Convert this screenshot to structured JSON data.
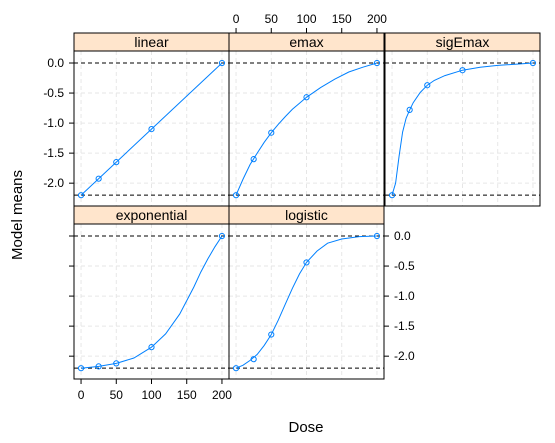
{
  "chart_data": {
    "type": "line",
    "layout": "lattice 3x2",
    "xlabel": "Dose",
    "ylabel": "Model means",
    "xlim": [
      -10,
      210
    ],
    "ylim": [
      -2.38,
      0.2
    ],
    "x_ticks": [
      0,
      50,
      100,
      150,
      200
    ],
    "y_ticks": [
      0.0,
      -0.5,
      -1.0,
      -1.5,
      -2.0
    ],
    "x_tick_labels": [
      "0",
      "50",
      "100",
      "150",
      "200"
    ],
    "y_tick_labels": [
      "0.0",
      "-0.5",
      "-1.0",
      "-1.5",
      "-2.0"
    ],
    "reference_lines": [
      0,
      -2.2
    ],
    "grid": true,
    "colors": {
      "line": "#0080ff",
      "points": "#0080ff",
      "strip": "#ffe5cc",
      "reference": "#000000",
      "grid": "#e6e6e6"
    },
    "panels": [
      {
        "title": "linear",
        "dose": [
          0,
          25,
          50,
          100,
          200
        ],
        "means": [
          -2.2,
          -1.925,
          -1.65,
          -1.1,
          0.0
        ],
        "curve": {
          "x": [
            0,
            200
          ],
          "y": [
            -2.2,
            0.0
          ]
        }
      },
      {
        "title": "emax",
        "dose": [
          0,
          25,
          50,
          100,
          200
        ],
        "means": [
          -2.2,
          -1.6,
          -1.16,
          -0.57,
          0.0
        ],
        "curve": {
          "x": [
            0,
            10,
            20,
            30,
            40,
            50,
            60,
            70,
            80,
            90,
            100,
            120,
            140,
            160,
            180,
            200
          ],
          "y": [
            -2.2,
            -1.93,
            -1.69,
            -1.5,
            -1.32,
            -1.16,
            -1.02,
            -0.89,
            -0.77,
            -0.67,
            -0.57,
            -0.41,
            -0.27,
            -0.15,
            -0.07,
            0.0
          ]
        }
      },
      {
        "title": "sigEmax",
        "dose": [
          0,
          25,
          50,
          100,
          200
        ],
        "means": [
          -2.2,
          -0.78,
          -0.37,
          -0.12,
          0.0
        ],
        "curve": {
          "x": [
            0,
            5,
            10,
            15,
            20,
            25,
            30,
            40,
            50,
            60,
            75,
            100,
            125,
            150,
            175,
            200
          ],
          "y": [
            -2.2,
            -2.0,
            -1.55,
            -1.15,
            -0.92,
            -0.78,
            -0.66,
            -0.49,
            -0.37,
            -0.29,
            -0.21,
            -0.12,
            -0.07,
            -0.04,
            -0.02,
            0.0
          ]
        }
      },
      {
        "title": "exponential",
        "dose": [
          0,
          25,
          50,
          100,
          200
        ],
        "means": [
          -2.2,
          -2.17,
          -2.12,
          -1.85,
          0.0
        ],
        "curve": {
          "x": [
            0,
            25,
            50,
            75,
            100,
            120,
            140,
            160,
            170,
            180,
            190,
            200
          ],
          "y": [
            -2.2,
            -2.17,
            -2.12,
            -2.03,
            -1.85,
            -1.63,
            -1.3,
            -0.85,
            -0.6,
            -0.38,
            -0.18,
            0.0
          ]
        }
      },
      {
        "title": "logistic",
        "dose": [
          0,
          25,
          50,
          100,
          200
        ],
        "means": [
          -2.2,
          -2.05,
          -1.64,
          -0.44,
          0.0
        ],
        "curve": {
          "x": [
            0,
            10,
            20,
            30,
            40,
            50,
            60,
            70,
            80,
            90,
            100,
            115,
            130,
            150,
            175,
            200
          ],
          "y": [
            -2.2,
            -2.15,
            -2.07,
            -1.97,
            -1.82,
            -1.64,
            -1.4,
            -1.13,
            -0.87,
            -0.63,
            -0.44,
            -0.25,
            -0.12,
            -0.05,
            -0.01,
            0.0
          ]
        }
      }
    ]
  }
}
